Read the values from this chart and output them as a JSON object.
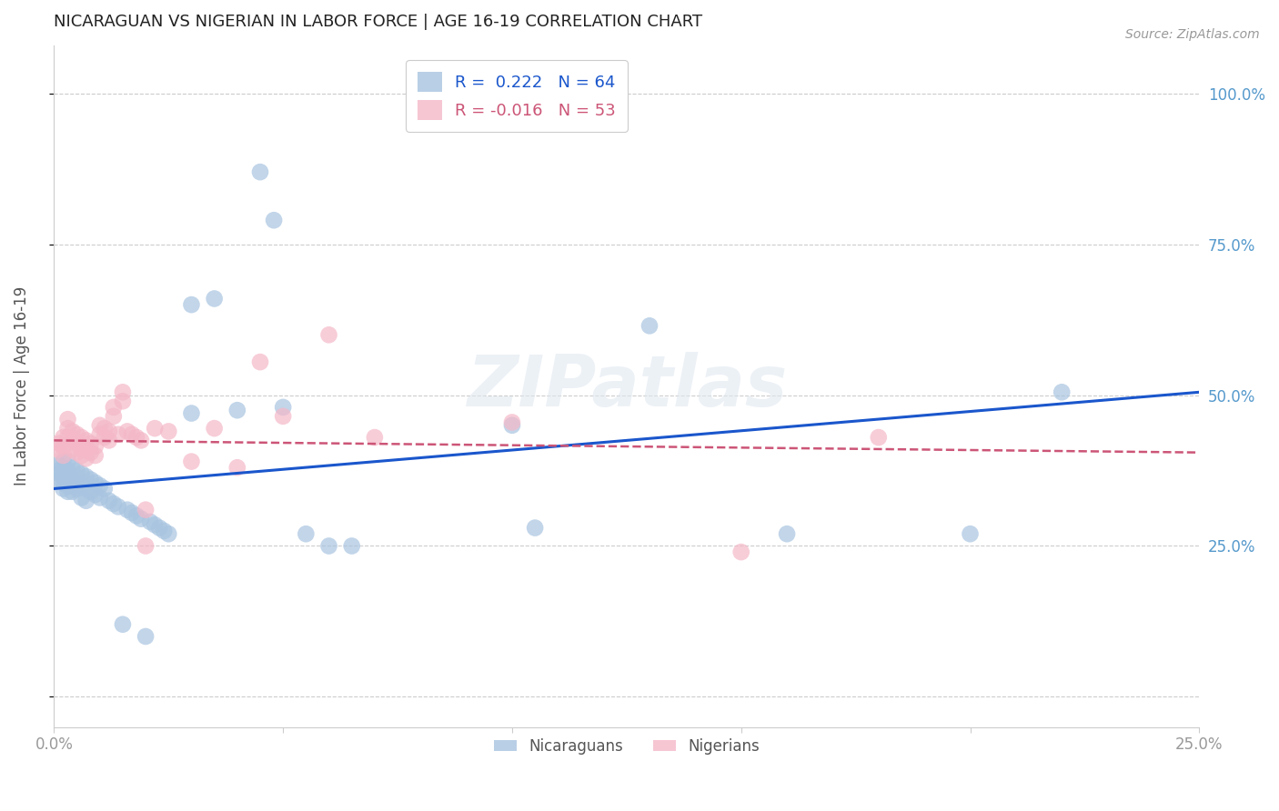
{
  "title": "NICARAGUAN VS NIGERIAN IN LABOR FORCE | AGE 16-19 CORRELATION CHART",
  "source": "Source: ZipAtlas.com",
  "ylabel": "In Labor Force | Age 16-19",
  "xlim": [
    0.0,
    0.25
  ],
  "ylim": [
    -0.05,
    1.08
  ],
  "yticks": [
    0.0,
    0.25,
    0.5,
    0.75,
    1.0
  ],
  "xticks": [
    0.0,
    0.05,
    0.1,
    0.15,
    0.2,
    0.25
  ],
  "blue_color": "#a8c4e0",
  "pink_color": "#f4b8c8",
  "line_blue": "#1a56cc",
  "line_pink": "#cc5577",
  "legend_r_blue": "0.222",
  "legend_n_blue": "64",
  "legend_r_pink": "-0.016",
  "legend_n_pink": "53",
  "blue_dots": [
    [
      0.001,
      0.385
    ],
    [
      0.001,
      0.375
    ],
    [
      0.001,
      0.37
    ],
    [
      0.001,
      0.36
    ],
    [
      0.002,
      0.39
    ],
    [
      0.002,
      0.38
    ],
    [
      0.002,
      0.365
    ],
    [
      0.002,
      0.355
    ],
    [
      0.002,
      0.345
    ],
    [
      0.003,
      0.39
    ],
    [
      0.003,
      0.375
    ],
    [
      0.003,
      0.365
    ],
    [
      0.003,
      0.35
    ],
    [
      0.003,
      0.34
    ],
    [
      0.004,
      0.38
    ],
    [
      0.004,
      0.36
    ],
    [
      0.004,
      0.35
    ],
    [
      0.004,
      0.34
    ],
    [
      0.005,
      0.375
    ],
    [
      0.005,
      0.355
    ],
    [
      0.005,
      0.345
    ],
    [
      0.006,
      0.37
    ],
    [
      0.006,
      0.35
    ],
    [
      0.006,
      0.33
    ],
    [
      0.007,
      0.365
    ],
    [
      0.007,
      0.345
    ],
    [
      0.007,
      0.325
    ],
    [
      0.008,
      0.36
    ],
    [
      0.008,
      0.34
    ],
    [
      0.009,
      0.355
    ],
    [
      0.009,
      0.335
    ],
    [
      0.01,
      0.35
    ],
    [
      0.01,
      0.33
    ],
    [
      0.011,
      0.345
    ],
    [
      0.012,
      0.325
    ],
    [
      0.013,
      0.32
    ],
    [
      0.014,
      0.315
    ],
    [
      0.015,
      0.12
    ],
    [
      0.016,
      0.31
    ],
    [
      0.017,
      0.305
    ],
    [
      0.018,
      0.3
    ],
    [
      0.019,
      0.295
    ],
    [
      0.02,
      0.1
    ],
    [
      0.021,
      0.29
    ],
    [
      0.022,
      0.285
    ],
    [
      0.023,
      0.28
    ],
    [
      0.024,
      0.275
    ],
    [
      0.025,
      0.27
    ],
    [
      0.03,
      0.65
    ],
    [
      0.03,
      0.47
    ],
    [
      0.035,
      0.66
    ],
    [
      0.04,
      0.475
    ],
    [
      0.045,
      0.87
    ],
    [
      0.048,
      0.79
    ],
    [
      0.05,
      0.48
    ],
    [
      0.055,
      0.27
    ],
    [
      0.06,
      0.25
    ],
    [
      0.065,
      0.25
    ],
    [
      0.1,
      0.45
    ],
    [
      0.105,
      0.28
    ],
    [
      0.13,
      0.615
    ],
    [
      0.16,
      0.27
    ],
    [
      0.2,
      0.27
    ],
    [
      0.22,
      0.505
    ]
  ],
  "pink_dots": [
    [
      0.001,
      0.42
    ],
    [
      0.001,
      0.41
    ],
    [
      0.002,
      0.43
    ],
    [
      0.002,
      0.415
    ],
    [
      0.002,
      0.4
    ],
    [
      0.003,
      0.46
    ],
    [
      0.003,
      0.445
    ],
    [
      0.003,
      0.43
    ],
    [
      0.004,
      0.44
    ],
    [
      0.004,
      0.425
    ],
    [
      0.004,
      0.41
    ],
    [
      0.005,
      0.435
    ],
    [
      0.005,
      0.42
    ],
    [
      0.005,
      0.405
    ],
    [
      0.006,
      0.43
    ],
    [
      0.006,
      0.415
    ],
    [
      0.006,
      0.4
    ],
    [
      0.007,
      0.425
    ],
    [
      0.007,
      0.41
    ],
    [
      0.007,
      0.395
    ],
    [
      0.008,
      0.42
    ],
    [
      0.008,
      0.405
    ],
    [
      0.009,
      0.415
    ],
    [
      0.009,
      0.4
    ],
    [
      0.01,
      0.45
    ],
    [
      0.01,
      0.435
    ],
    [
      0.011,
      0.445
    ],
    [
      0.011,
      0.43
    ],
    [
      0.012,
      0.44
    ],
    [
      0.012,
      0.425
    ],
    [
      0.013,
      0.48
    ],
    [
      0.013,
      0.465
    ],
    [
      0.014,
      0.435
    ],
    [
      0.015,
      0.505
    ],
    [
      0.015,
      0.49
    ],
    [
      0.016,
      0.44
    ],
    [
      0.017,
      0.435
    ],
    [
      0.018,
      0.43
    ],
    [
      0.019,
      0.425
    ],
    [
      0.02,
      0.31
    ],
    [
      0.02,
      0.25
    ],
    [
      0.022,
      0.445
    ],
    [
      0.025,
      0.44
    ],
    [
      0.03,
      0.39
    ],
    [
      0.035,
      0.445
    ],
    [
      0.04,
      0.38
    ],
    [
      0.045,
      0.555
    ],
    [
      0.05,
      0.465
    ],
    [
      0.06,
      0.6
    ],
    [
      0.07,
      0.43
    ],
    [
      0.1,
      0.455
    ],
    [
      0.15,
      0.24
    ],
    [
      0.18,
      0.43
    ]
  ],
  "blue_line_x": [
    0.0,
    0.25
  ],
  "blue_line_y": [
    0.345,
    0.505
  ],
  "pink_line_x": [
    0.0,
    0.25
  ],
  "pink_line_y": [
    0.425,
    0.405
  ],
  "watermark": "ZIPatlas",
  "background_color": "#ffffff",
  "grid_color": "#cccccc",
  "tick_color_right": "#5599cc",
  "tick_color_bottom": "#999999"
}
